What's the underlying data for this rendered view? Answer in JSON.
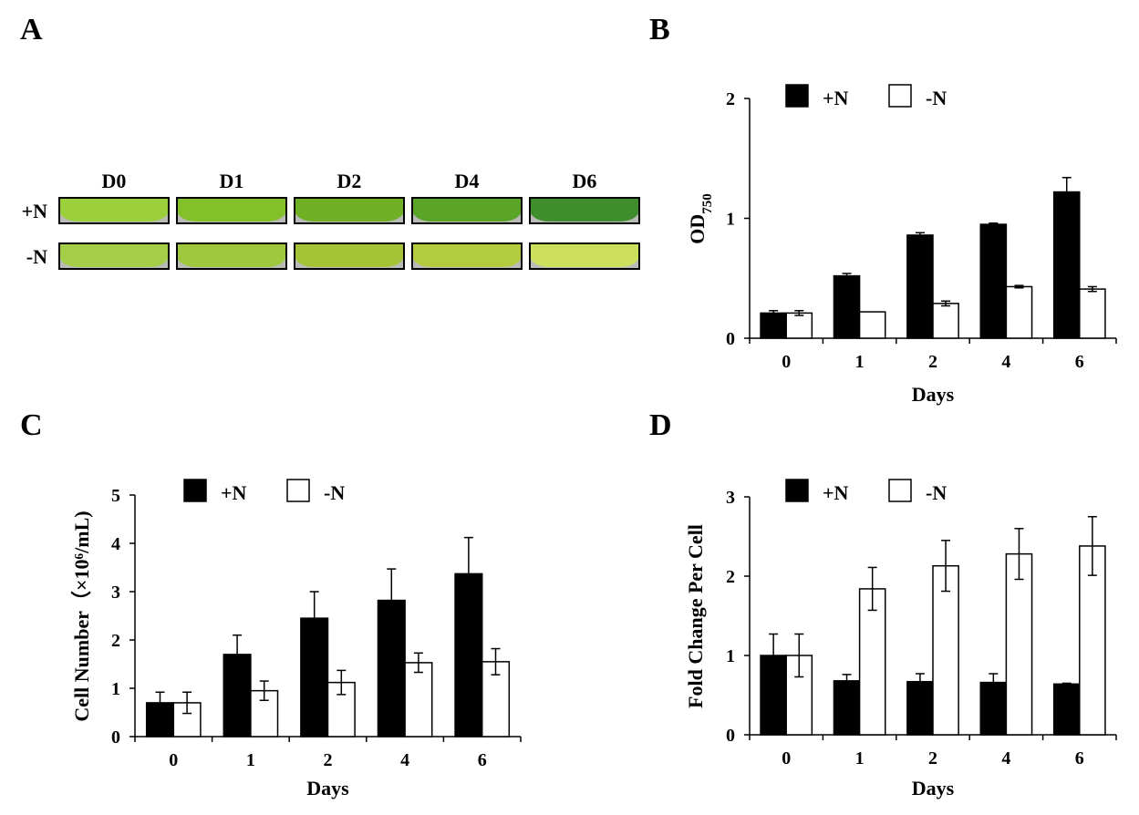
{
  "panel_letters": {
    "a": "A",
    "b": "B",
    "c": "C",
    "d": "D"
  },
  "photo_panel": {
    "columns": [
      "D0",
      "D1",
      "D2",
      "D4",
      "D6"
    ],
    "rows": [
      {
        "label": "+N",
        "colors": [
          "#9ccf3c",
          "#84c02a",
          "#6fb024",
          "#5aa428",
          "#3f8d2c"
        ]
      },
      {
        "label": "-N",
        "colors": [
          "#a4cd48",
          "#a0c83e",
          "#a6c338",
          "#b3cb3e",
          "#cde05e"
        ]
      }
    ]
  },
  "legend": {
    "plus": "+N",
    "minus": "-N"
  },
  "colors": {
    "plus": "#000000",
    "minus": "#ffffff",
    "stroke": "#000000"
  },
  "chart_data": [
    {
      "id": "B",
      "type": "bar",
      "categories": [
        "0",
        "1",
        "2",
        "4",
        "6"
      ],
      "series": [
        {
          "name": "+N",
          "values": [
            0.21,
            0.52,
            0.86,
            0.95,
            1.22
          ],
          "errors": [
            0.02,
            0.02,
            0.02,
            0.01,
            0.12
          ]
        },
        {
          "name": "-N",
          "values": [
            0.21,
            0.22,
            0.29,
            0.43,
            0.41
          ],
          "errors": [
            0.02,
            0.0,
            0.02,
            0.01,
            0.02
          ]
        }
      ],
      "xlabel": "Days",
      "ylabel": "OD",
      "ylabel_sub": "750",
      "ylim": [
        0,
        2
      ],
      "yticks": [
        "0",
        "1",
        "2"
      ],
      "legend_position": "top"
    },
    {
      "id": "C",
      "type": "bar",
      "categories": [
        "0",
        "1",
        "2",
        "4",
        "6"
      ],
      "series": [
        {
          "name": "+N",
          "values": [
            0.7,
            1.7,
            2.45,
            2.82,
            3.37
          ],
          "errors": [
            0.22,
            0.4,
            0.55,
            0.65,
            0.75
          ]
        },
        {
          "name": "-N",
          "values": [
            0.7,
            0.95,
            1.12,
            1.53,
            1.55
          ],
          "errors": [
            0.22,
            0.2,
            0.25,
            0.2,
            0.27
          ]
        }
      ],
      "xlabel": "Days",
      "ylabel": "Cell Number（×10⁶/mL)",
      "ylim": [
        0,
        5
      ],
      "yticks": [
        "0",
        "1",
        "2",
        "3",
        "4",
        "5"
      ],
      "legend_position": "top"
    },
    {
      "id": "D",
      "type": "bar",
      "categories": [
        "0",
        "1",
        "2",
        "4",
        "6"
      ],
      "series": [
        {
          "name": "+N",
          "values": [
            1.0,
            0.68,
            0.67,
            0.66,
            0.64
          ],
          "errors": [
            0.27,
            0.08,
            0.1,
            0.11,
            0.01
          ]
        },
        {
          "name": "-N",
          "values": [
            1.0,
            1.84,
            2.13,
            2.28,
            2.38
          ],
          "errors": [
            0.27,
            0.27,
            0.32,
            0.32,
            0.37
          ]
        }
      ],
      "xlabel": "Days",
      "ylabel": "Fold Change Per Cell",
      "ylim": [
        0,
        3
      ],
      "yticks": [
        "0",
        "1",
        "2",
        "3"
      ],
      "legend_position": "top"
    }
  ]
}
